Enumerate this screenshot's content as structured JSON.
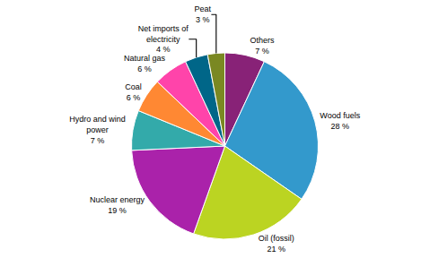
{
  "chart_data": {
    "type": "pie",
    "categories": [
      "Others",
      "Wood fuels",
      "Oil (fossil)",
      "Nuclear energy",
      "Hydro and wind\npower",
      "Coal",
      "Natural gas",
      "Net imports of\nelectricity",
      "Peat"
    ],
    "values": [
      7,
      28,
      21,
      19,
      7,
      6,
      6,
      4,
      3
    ],
    "value_labels": [
      "7 %",
      "28 %",
      "21 %",
      "19 %",
      "7 %",
      "6 %",
      "6 %",
      "4 %",
      "3 %"
    ],
    "colors": [
      "#882277",
      "#3399cc",
      "#bbd422",
      "#aa22aa",
      "#33aaaa",
      "#ff8833",
      "#ff44aa",
      "#006688",
      "#7a8822"
    ],
    "data_labels": true
  }
}
